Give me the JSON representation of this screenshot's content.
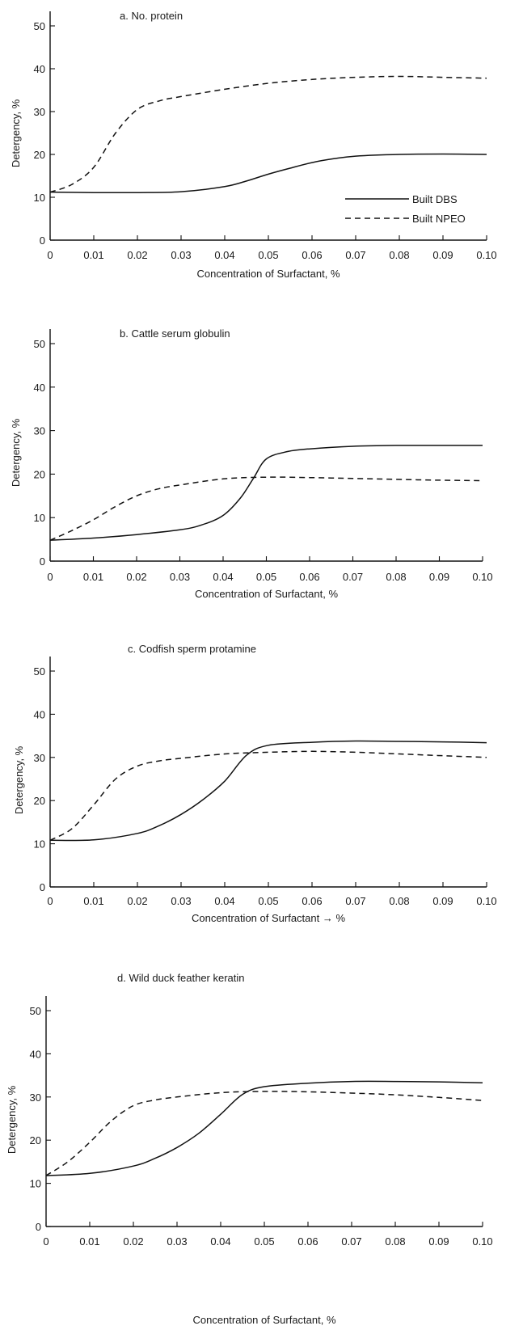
{
  "figure": {
    "legend": [
      "Built DBS",
      "Built NPEO"
    ],
    "legend_placement": "lower-right of panel a"
  },
  "chart_data": [
    {
      "type": "line",
      "title": "a.  No. protein",
      "xlabel": "Concentration of Surfactant,  %",
      "ylabel": "Detergency,  %",
      "xlim": [
        0,
        0.1
      ],
      "ylim": [
        0,
        50
      ],
      "xticks": [
        "0",
        "0.01",
        "0.02",
        "0.03",
        "0.04",
        "0.05",
        "0.06",
        "0.07",
        "0.08",
        "0.09",
        "0.10"
      ],
      "yticks": [
        "0",
        "10",
        "20",
        "30",
        "40",
        "50"
      ],
      "grid": false,
      "series": [
        {
          "name": "Built DBS",
          "style": "solid",
          "x": [
            0,
            0.01,
            0.02,
            0.03,
            0.04,
            0.045,
            0.05,
            0.055,
            0.06,
            0.065,
            0.07,
            0.08,
            0.09,
            0.1
          ],
          "y": [
            11.2,
            11.1,
            11.1,
            11.3,
            12.5,
            13.8,
            15.4,
            16.8,
            18.1,
            19.0,
            19.6,
            20.0,
            20.1,
            20.0
          ]
        },
        {
          "name": "Built NPEO",
          "style": "dashed",
          "x": [
            0,
            0.005,
            0.01,
            0.015,
            0.02,
            0.025,
            0.03,
            0.04,
            0.05,
            0.06,
            0.07,
            0.08,
            0.09,
            0.1
          ],
          "y": [
            11.2,
            13.0,
            17.0,
            25.0,
            30.5,
            32.5,
            33.5,
            35.2,
            36.6,
            37.5,
            38.0,
            38.2,
            38.0,
            37.8
          ]
        }
      ]
    },
    {
      "type": "line",
      "title": "b.  Cattle  serum  globulin",
      "xlabel": "Concentration of Surfactant,  %",
      "ylabel": "Detergency,  %",
      "xlim": [
        0,
        0.1
      ],
      "ylim": [
        0,
        50
      ],
      "xticks": [
        "0",
        "0.01",
        "0.02",
        "0.03",
        "0.04",
        "0.05",
        "0.06",
        "0.07",
        "0.08",
        "0.09",
        "0.10"
      ],
      "yticks": [
        "0",
        "10",
        "20",
        "30",
        "40",
        "50"
      ],
      "grid": false,
      "series": [
        {
          "name": "Built DBS",
          "style": "solid",
          "x": [
            0,
            0.01,
            0.02,
            0.03,
            0.035,
            0.04,
            0.044,
            0.047,
            0.05,
            0.055,
            0.06,
            0.07,
            0.08,
            0.09,
            0.1
          ],
          "y": [
            4.8,
            5.3,
            6.1,
            7.2,
            8.3,
            10.5,
            14.5,
            19.0,
            23.5,
            25.2,
            25.8,
            26.4,
            26.6,
            26.6,
            26.6
          ]
        },
        {
          "name": "Built NPEO",
          "style": "dashed",
          "x": [
            0,
            0.005,
            0.01,
            0.015,
            0.02,
            0.025,
            0.03,
            0.04,
            0.05,
            0.06,
            0.07,
            0.08,
            0.09,
            0.1
          ],
          "y": [
            4.8,
            7.0,
            9.5,
            12.5,
            15.0,
            16.6,
            17.5,
            18.9,
            19.3,
            19.2,
            19.0,
            18.8,
            18.6,
            18.5
          ]
        }
      ]
    },
    {
      "type": "line",
      "title": "c.  Codfish  sperm  protamine",
      "xlabel": "Concentration of  Surfactant → %",
      "ylabel": "Detergency,  %",
      "xlim": [
        0,
        0.1
      ],
      "ylim": [
        0,
        50
      ],
      "xticks": [
        "0",
        "0.01",
        "0.02",
        "0.03",
        "0.04",
        "0.05",
        "0.06",
        "0.07",
        "0.08",
        "0.09",
        "0.10"
      ],
      "yticks": [
        "0",
        "10",
        "20",
        "30",
        "40",
        "50"
      ],
      "grid": false,
      "series": [
        {
          "name": "Built DBS",
          "style": "solid",
          "x": [
            0,
            0.01,
            0.02,
            0.025,
            0.03,
            0.035,
            0.04,
            0.045,
            0.05,
            0.06,
            0.07,
            0.08,
            0.09,
            0.1
          ],
          "y": [
            10.8,
            10.9,
            12.4,
            14.2,
            16.8,
            20.2,
            24.5,
            30.5,
            32.8,
            33.5,
            33.8,
            33.7,
            33.6,
            33.4
          ]
        },
        {
          "name": "Built NPEO",
          "style": "dashed",
          "x": [
            0,
            0.005,
            0.01,
            0.015,
            0.02,
            0.025,
            0.03,
            0.04,
            0.05,
            0.06,
            0.07,
            0.08,
            0.09,
            0.1
          ],
          "y": [
            10.8,
            13.5,
            19.0,
            25.0,
            28.0,
            29.2,
            29.8,
            30.8,
            31.2,
            31.4,
            31.2,
            30.8,
            30.4,
            30.0
          ]
        }
      ]
    },
    {
      "type": "line",
      "title": "d.  Wild  duck  feather  keratin",
      "xlabel": "Concentration  of  Surfactant,  %",
      "ylabel": "Detergency,  %",
      "xlim": [
        0,
        0.1
      ],
      "ylim": [
        0,
        50
      ],
      "xticks": [
        "0",
        "0.01",
        "0.02",
        "0.03",
        "0.04",
        "0.05",
        "0.06",
        "0.07",
        "0.08",
        "0.09",
        "0.10"
      ],
      "yticks": [
        "0",
        "10",
        "20",
        "30",
        "40",
        "50"
      ],
      "grid": false,
      "series": [
        {
          "name": "Built DBS",
          "style": "solid",
          "x": [
            0,
            0.01,
            0.02,
            0.025,
            0.03,
            0.035,
            0.04,
            0.045,
            0.05,
            0.06,
            0.07,
            0.08,
            0.09,
            0.1
          ],
          "y": [
            11.8,
            12.3,
            14.0,
            15.8,
            18.3,
            21.6,
            26.0,
            30.6,
            32.4,
            33.2,
            33.6,
            33.6,
            33.5,
            33.3
          ]
        },
        {
          "name": "Built NPEO",
          "style": "dashed",
          "x": [
            0,
            0.005,
            0.01,
            0.015,
            0.02,
            0.025,
            0.03,
            0.04,
            0.05,
            0.06,
            0.07,
            0.08,
            0.09,
            0.1
          ],
          "y": [
            11.8,
            15.0,
            19.5,
            24.5,
            28.0,
            29.3,
            30.0,
            31.0,
            31.3,
            31.2,
            30.9,
            30.5,
            29.9,
            29.2
          ]
        }
      ]
    }
  ]
}
